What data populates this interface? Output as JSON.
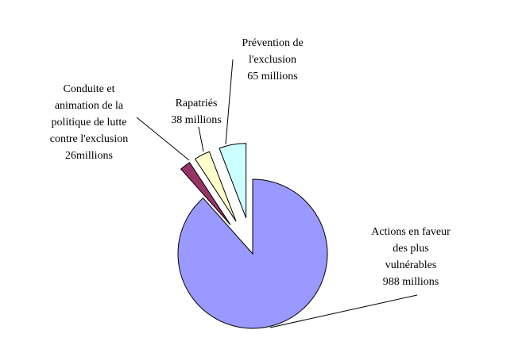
{
  "chart_data": {
    "type": "pie",
    "title": "",
    "start": "12 o'clock, clockwise",
    "exploded": [
      "Conduite et animation de la politique de lutte contre l'exclusion",
      "Rapatriés",
      "Prévention de l'exclusion"
    ],
    "slices": [
      {
        "name": "Actions en faveur des plus vulnérables",
        "value": 988,
        "label": "Actions en faveur\ndes plus\nvulnérables\n988 millions",
        "color": "#9999FF"
      },
      {
        "name": "Conduite et animation de la politique de lutte contre l'exclusion",
        "value": 26,
        "label": "Conduite et\nanimation de la\npolitique de lutte\ncontre l'exclusion\n26millions",
        "color": "#993366"
      },
      {
        "name": "Rapatriés",
        "value": 38,
        "label": "Rapatriés\n38 millions",
        "color": "#FFFFCC"
      },
      {
        "name": "Prévention de l'exclusion",
        "value": 65,
        "label": "Prévention de\nl'exclusion\n65 millions",
        "color": "#CCFFFF"
      }
    ]
  }
}
